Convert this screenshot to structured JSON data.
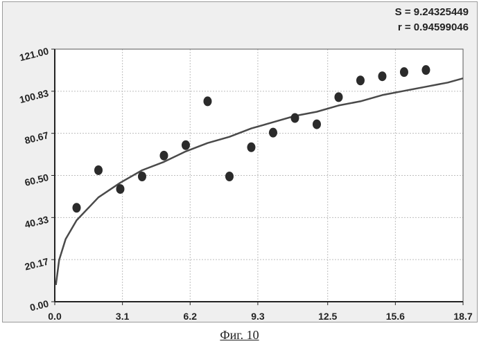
{
  "stats": {
    "s_text": "S = 9.24325449",
    "r_text": "r = 0.94599046"
  },
  "caption": "Фиг. 10",
  "colors": {
    "background": "#efefef",
    "plot_area": "#ffffff",
    "points": "#2b2b2b",
    "curve": "#4a4a4a",
    "grid": "#bdbdbd"
  },
  "chart_data": {
    "type": "scatter",
    "title": "",
    "xlabel": "",
    "ylabel": "",
    "xlim": [
      0.0,
      18.7
    ],
    "ylim": [
      0.0,
      121.0
    ],
    "grid": true,
    "x_ticks": [
      0.0,
      3.1,
      6.2,
      9.3,
      12.5,
      15.6,
      18.7
    ],
    "x_tick_labels": [
      "0.0",
      "3.1",
      "6.2",
      "9.3",
      "12.5",
      "15.6",
      "18.7"
    ],
    "y_ticks": [
      0.0,
      20.17,
      40.33,
      60.5,
      80.67,
      100.83,
      121.0
    ],
    "y_tick_labels": [
      "0.00",
      "20.17",
      "40.33",
      "60.50",
      "80.67",
      "100.83",
      "121.00"
    ],
    "series": [
      {
        "kind": "points",
        "points": [
          {
            "x": 1,
            "y": 45
          },
          {
            "x": 2,
            "y": 63
          },
          {
            "x": 3,
            "y": 54
          },
          {
            "x": 4,
            "y": 60
          },
          {
            "x": 5,
            "y": 70
          },
          {
            "x": 6,
            "y": 75
          },
          {
            "x": 7,
            "y": 96
          },
          {
            "x": 8,
            "y": 60
          },
          {
            "x": 9,
            "y": 74
          },
          {
            "x": 10,
            "y": 81
          },
          {
            "x": 11,
            "y": 88
          },
          {
            "x": 12,
            "y": 85
          },
          {
            "x": 13,
            "y": 98
          },
          {
            "x": 14,
            "y": 106
          },
          {
            "x": 15,
            "y": 108
          },
          {
            "x": 16,
            "y": 110
          },
          {
            "x": 17,
            "y": 111
          }
        ]
      },
      {
        "kind": "fitted-curve",
        "points": [
          {
            "x": 0.05,
            "y": 8
          },
          {
            "x": 0.2,
            "y": 20
          },
          {
            "x": 0.5,
            "y": 30
          },
          {
            "x": 1,
            "y": 39
          },
          {
            "x": 2,
            "y": 50
          },
          {
            "x": 3,
            "y": 57
          },
          {
            "x": 4,
            "y": 63
          },
          {
            "x": 5,
            "y": 67
          },
          {
            "x": 6,
            "y": 72
          },
          {
            "x": 7,
            "y": 76
          },
          {
            "x": 8,
            "y": 79
          },
          {
            "x": 9,
            "y": 83
          },
          {
            "x": 10,
            "y": 86
          },
          {
            "x": 11,
            "y": 89
          },
          {
            "x": 12,
            "y": 91
          },
          {
            "x": 13,
            "y": 94
          },
          {
            "x": 14,
            "y": 96
          },
          {
            "x": 15,
            "y": 99
          },
          {
            "x": 16,
            "y": 101
          },
          {
            "x": 17,
            "y": 103
          },
          {
            "x": 18,
            "y": 105
          },
          {
            "x": 18.7,
            "y": 107
          }
        ]
      }
    ]
  }
}
